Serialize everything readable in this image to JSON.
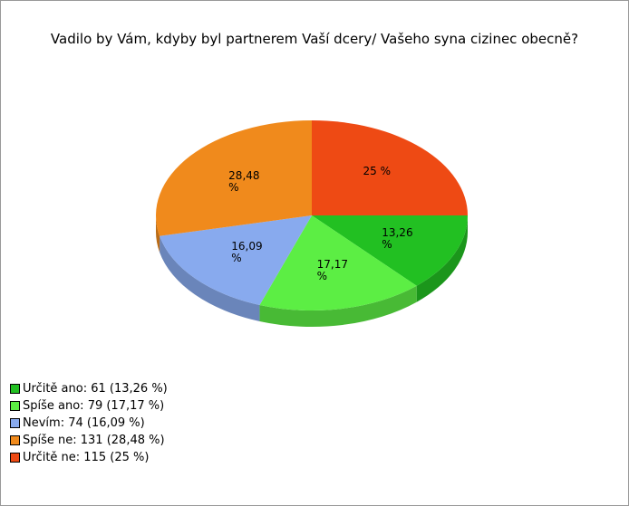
{
  "chart_data": {
    "type": "pie",
    "title": "Vadilo by Vám, kdyby byl partnerem Vaší dcery/ Vašeho syna cizinec obecně?",
    "categories": [
      "Určitě ano",
      "Spíše ano",
      "Nevím",
      "Spíše ne",
      "Určitě ne"
    ],
    "values": [
      13.26,
      17.17,
      16.09,
      28.48,
      25
    ],
    "value_labels": [
      "13,26 %",
      "17,17 %",
      "16,09 %",
      "28,48 %",
      "25 %"
    ],
    "legend_labels": [
      "Určitě ano: 61 (13,26 %)",
      "Spíše ano: 79 (17,17 %)",
      "Nevím: 74 (16,09 %)",
      "Spíše ne: 131 (28,48 %)",
      "Určitě ne: 115 (25 %)"
    ],
    "colors": [
      "#22c022",
      "#5cee44",
      "#88aaee",
      "#f08a1c",
      "#ee4a14"
    ],
    "legend": "bottom-left"
  }
}
